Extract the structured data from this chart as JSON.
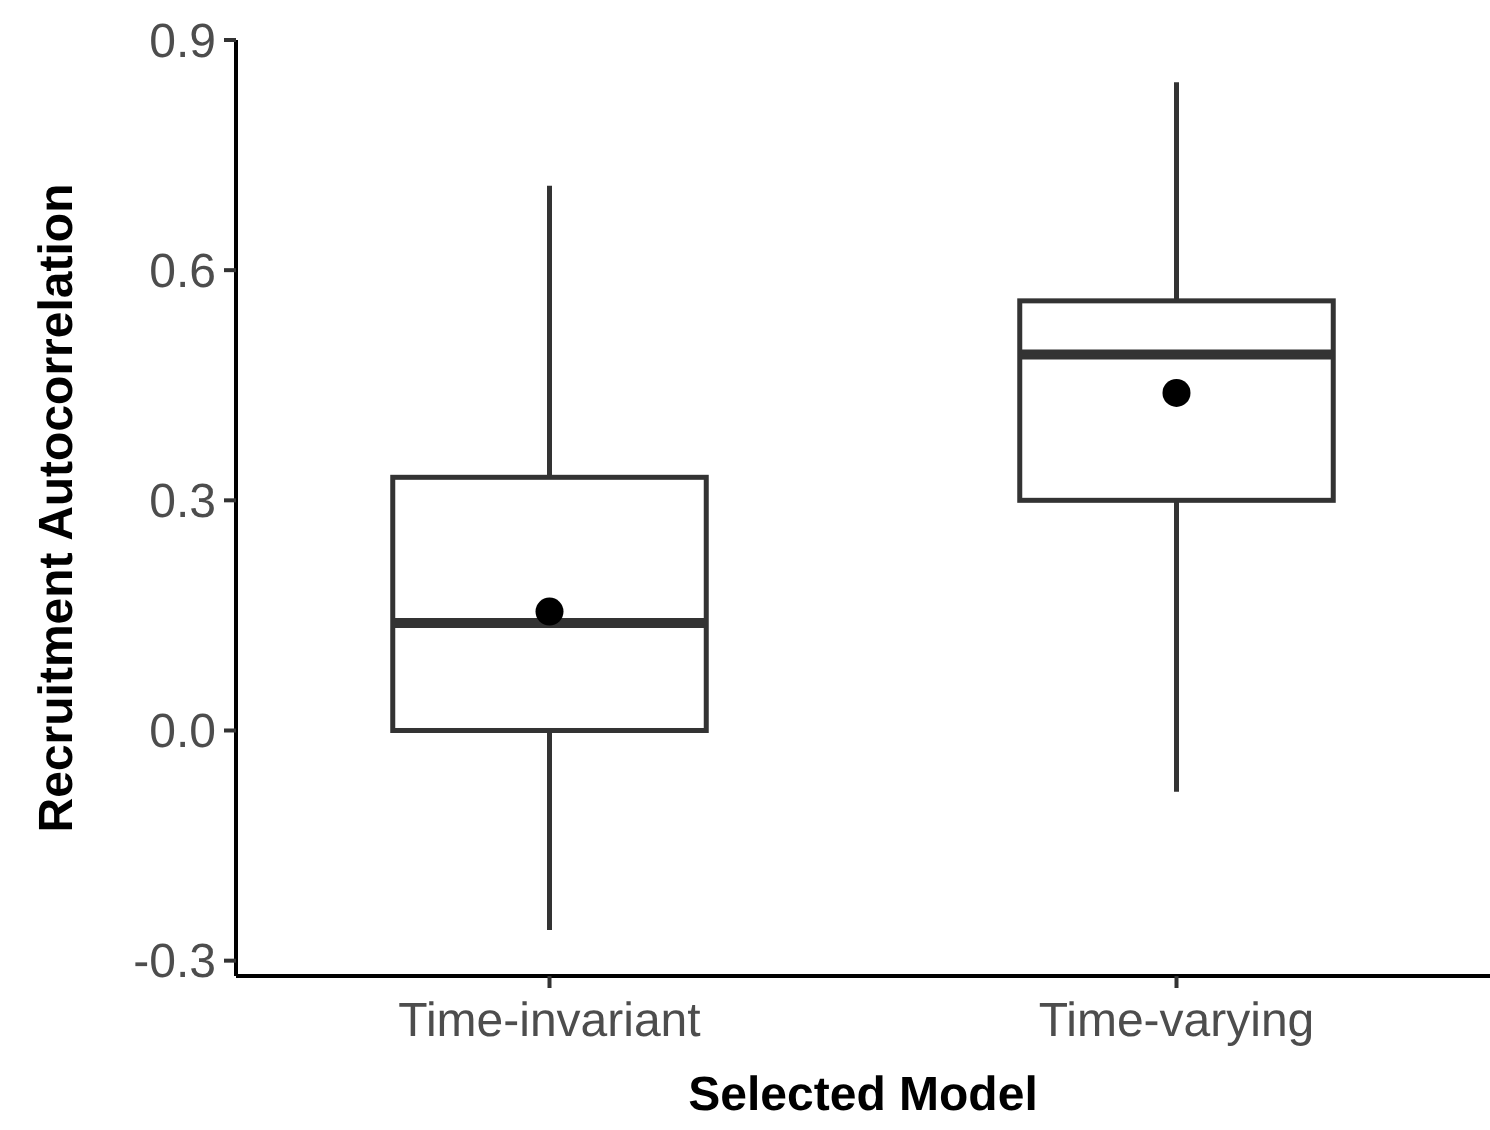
{
  "chart_data": {
    "type": "box",
    "xlabel": "Selected Model",
    "ylabel": "Recruitment Autocorrelation",
    "categories": [
      "Time-invariant",
      "Time-varying"
    ],
    "boxes": [
      {
        "low": -0.26,
        "q1": 0.0,
        "median": 0.14,
        "q3": 0.33,
        "high": 0.71,
        "mean": 0.155
      },
      {
        "low": -0.08,
        "q1": 0.3,
        "median": 0.49,
        "q3": 0.56,
        "high": 0.845,
        "mean": 0.44
      }
    ],
    "ylim": [
      -0.32,
      0.9
    ],
    "yticks": [
      {
        "value": -0.3,
        "label": "-0.3"
      },
      {
        "value": 0,
        "label": "0.0"
      },
      {
        "value": 0.3,
        "label": "0.3"
      },
      {
        "value": 0.6,
        "label": "0.6"
      },
      {
        "value": 0.9,
        "label": "0.9"
      }
    ],
    "color": "#333333",
    "grid": false
  }
}
